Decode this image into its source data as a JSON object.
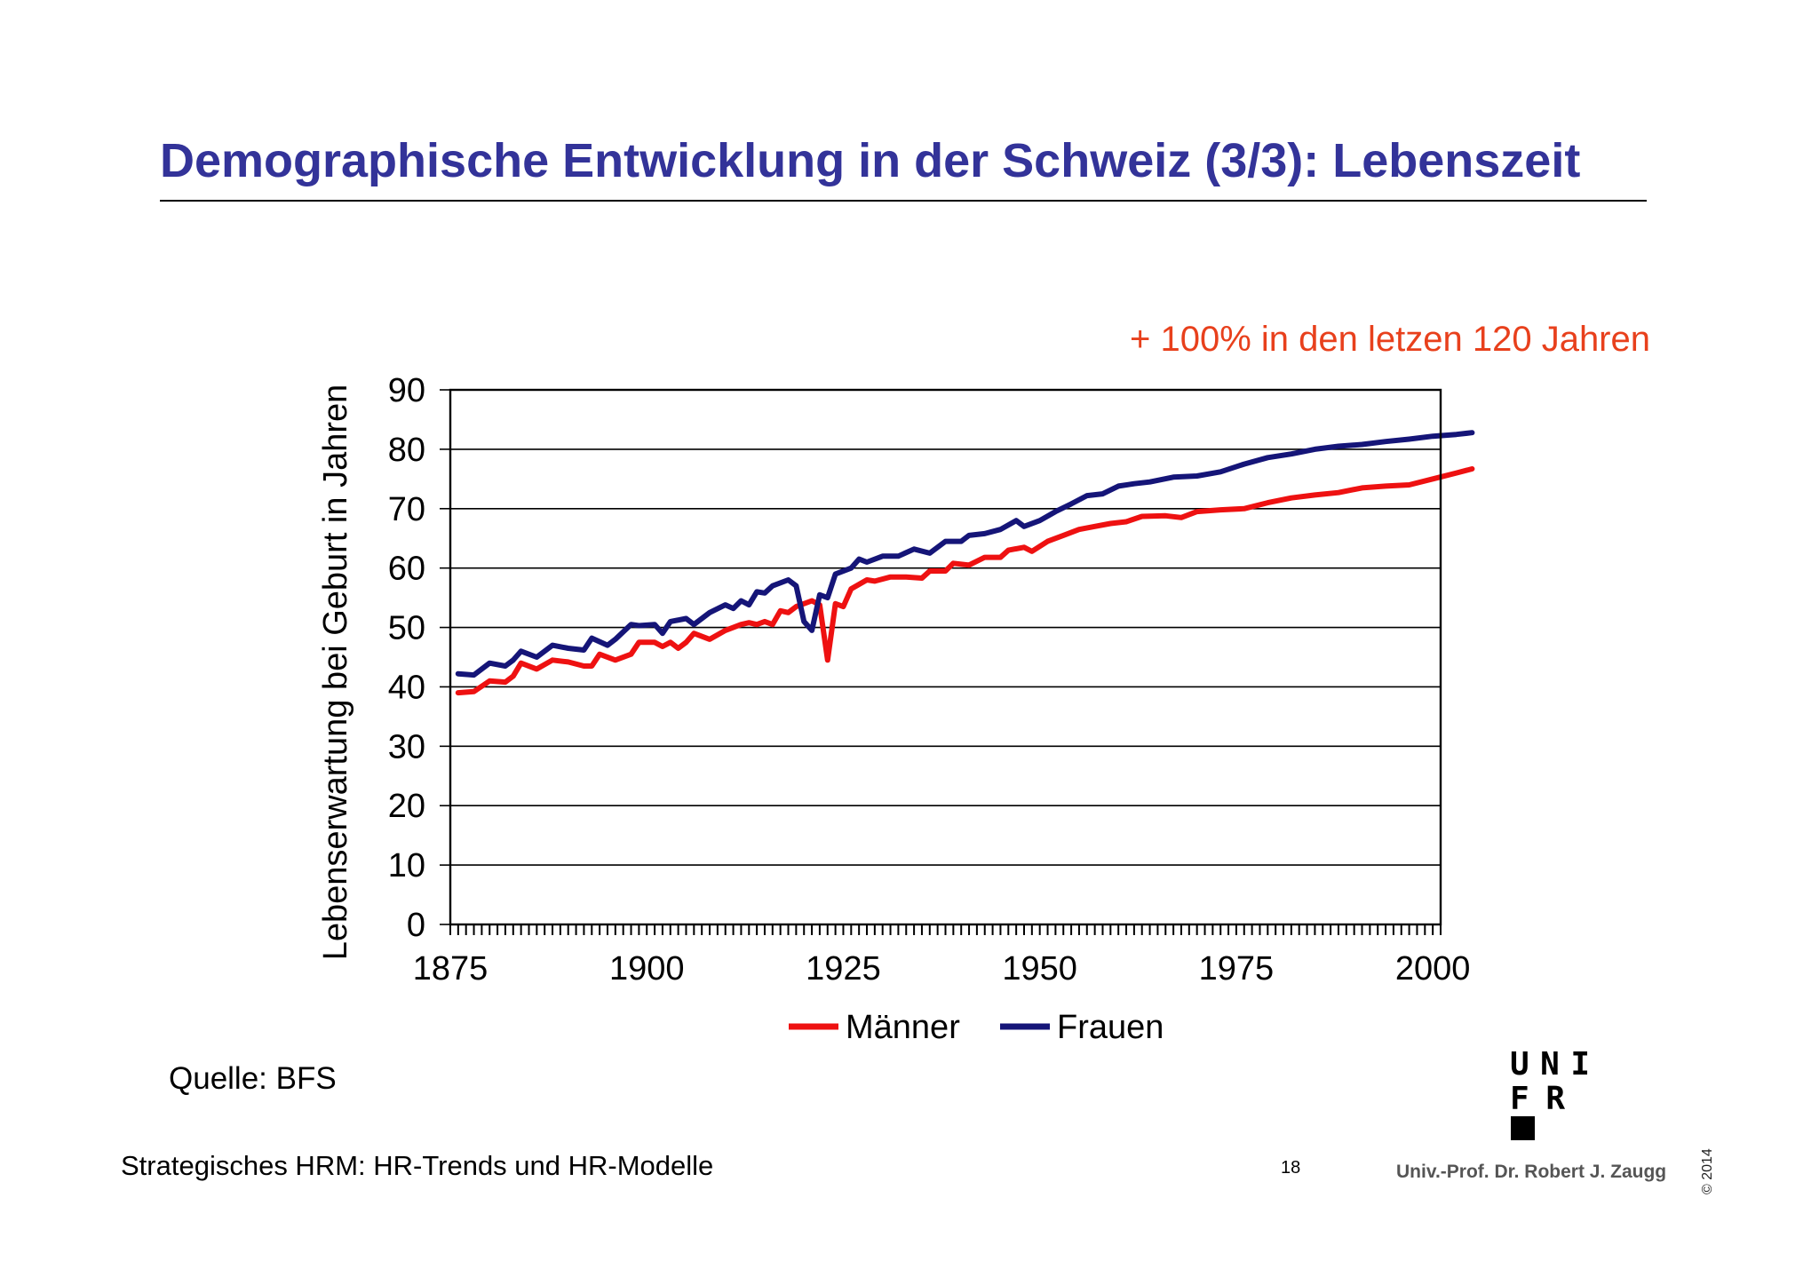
{
  "slide": {
    "title": "Demographische Entwicklung in der Schweiz (3/3): Lebenszeit",
    "annotation": "+ 100% in den letzen 120 Jahren",
    "source": "Quelle: BFS",
    "footer": "Strategisches HRM: HR-Trends und HR-Modelle",
    "page_number": "18",
    "author": "Univ.-Prof. Dr. Robert J. Zaugg",
    "copyright": "© 2014",
    "logo_text": [
      "UNI",
      "FR"
    ]
  },
  "chart_data": {
    "type": "line",
    "title": "",
    "xlabel": "",
    "ylabel": "Lebenserwartung bei Geburt in Jahren",
    "xlim": [
      1875,
      2001
    ],
    "ylim": [
      0,
      90
    ],
    "xticks": [
      1875,
      1900,
      1925,
      1950,
      1975,
      2000
    ],
    "yticks": [
      0,
      10,
      20,
      30,
      40,
      50,
      60,
      70,
      80,
      90
    ],
    "grid": true,
    "legend_position": "bottom",
    "series": [
      {
        "name": "Männer",
        "color": "#ee1111",
        "points": [
          [
            1876,
            39
          ],
          [
            1878,
            39.2
          ],
          [
            1880,
            41
          ],
          [
            1882,
            40.8
          ],
          [
            1883,
            41.8
          ],
          [
            1884,
            44
          ],
          [
            1886,
            43
          ],
          [
            1888,
            44.5
          ],
          [
            1890,
            44.2
          ],
          [
            1892,
            43.5
          ],
          [
            1893,
            43.5
          ],
          [
            1894,
            45.5
          ],
          [
            1896,
            44.5
          ],
          [
            1898,
            45.5
          ],
          [
            1899,
            47.5
          ],
          [
            1901,
            47.5
          ],
          [
            1902,
            46.8
          ],
          [
            1903,
            47.5
          ],
          [
            1904,
            46.5
          ],
          [
            1905,
            47.5
          ],
          [
            1906,
            49
          ],
          [
            1908,
            48
          ],
          [
            1910,
            49.5
          ],
          [
            1912,
            50.5
          ],
          [
            1913,
            50.8
          ],
          [
            1914,
            50.5
          ],
          [
            1915,
            51
          ],
          [
            1916,
            50.5
          ],
          [
            1917,
            52.8
          ],
          [
            1918,
            52.5
          ],
          [
            1919,
            53.5
          ],
          [
            1921,
            54.5
          ],
          [
            1922,
            53.8
          ],
          [
            1923,
            44.5
          ],
          [
            1924,
            54
          ],
          [
            1925,
            53.5
          ],
          [
            1926,
            56.5
          ],
          [
            1928,
            58
          ],
          [
            1929,
            57.8
          ],
          [
            1931,
            58.5
          ],
          [
            1933,
            58.5
          ],
          [
            1935,
            58.3
          ],
          [
            1936,
            59.5
          ],
          [
            1938,
            59.5
          ],
          [
            1939,
            60.8
          ],
          [
            1941,
            60.5
          ],
          [
            1943,
            61.8
          ],
          [
            1945,
            61.8
          ],
          [
            1946,
            63
          ],
          [
            1948,
            63.5
          ],
          [
            1949,
            62.8
          ],
          [
            1951,
            64.5
          ],
          [
            1953,
            65.5
          ],
          [
            1955,
            66.5
          ],
          [
            1957,
            67
          ],
          [
            1959,
            67.5
          ],
          [
            1961,
            67.8
          ],
          [
            1963,
            68.7
          ],
          [
            1966,
            68.8
          ],
          [
            1968,
            68.5
          ],
          [
            1970,
            69.5
          ],
          [
            1973,
            69.8
          ],
          [
            1976,
            70
          ],
          [
            1979,
            71
          ],
          [
            1982,
            71.8
          ],
          [
            1985,
            72.3
          ],
          [
            1988,
            72.7
          ],
          [
            1991,
            73.5
          ],
          [
            1994,
            73.8
          ],
          [
            1997,
            74
          ],
          [
            2000,
            75
          ],
          [
            2003,
            76
          ],
          [
            2005,
            76.7
          ]
        ]
      },
      {
        "name": "Frauen",
        "color": "#151578",
        "points": [
          [
            1876,
            42.2
          ],
          [
            1878,
            42
          ],
          [
            1880,
            44
          ],
          [
            1882,
            43.5
          ],
          [
            1883,
            44.5
          ],
          [
            1884,
            46
          ],
          [
            1886,
            45
          ],
          [
            1888,
            47
          ],
          [
            1890,
            46.5
          ],
          [
            1892,
            46.2
          ],
          [
            1893,
            48.2
          ],
          [
            1895,
            47
          ],
          [
            1896,
            48
          ],
          [
            1898,
            50.5
          ],
          [
            1899,
            50.3
          ],
          [
            1901,
            50.5
          ],
          [
            1902,
            49
          ],
          [
            1903,
            51
          ],
          [
            1905,
            51.5
          ],
          [
            1906,
            50.5
          ],
          [
            1908,
            52.5
          ],
          [
            1910,
            53.8
          ],
          [
            1911,
            53.2
          ],
          [
            1912,
            54.5
          ],
          [
            1913,
            53.8
          ],
          [
            1914,
            56
          ],
          [
            1915,
            55.8
          ],
          [
            1916,
            57
          ],
          [
            1918,
            58
          ],
          [
            1919,
            57
          ],
          [
            1920,
            51
          ],
          [
            1921,
            49.5
          ],
          [
            1922,
            55.5
          ],
          [
            1923,
            55
          ],
          [
            1924,
            59
          ],
          [
            1926,
            60
          ],
          [
            1927,
            61.5
          ],
          [
            1928,
            61
          ],
          [
            1930,
            62
          ],
          [
            1932,
            62
          ],
          [
            1934,
            63.2
          ],
          [
            1936,
            62.5
          ],
          [
            1938,
            64.5
          ],
          [
            1940,
            64.5
          ],
          [
            1941,
            65.5
          ],
          [
            1943,
            65.8
          ],
          [
            1945,
            66.5
          ],
          [
            1947,
            68
          ],
          [
            1948,
            67
          ],
          [
            1950,
            68
          ],
          [
            1952,
            69.5
          ],
          [
            1954,
            70.8
          ],
          [
            1956,
            72.2
          ],
          [
            1958,
            72.5
          ],
          [
            1960,
            73.8
          ],
          [
            1962,
            74.2
          ],
          [
            1964,
            74.5
          ],
          [
            1967,
            75.3
          ],
          [
            1970,
            75.5
          ],
          [
            1973,
            76.2
          ],
          [
            1976,
            77.5
          ],
          [
            1979,
            78.6
          ],
          [
            1982,
            79.2
          ],
          [
            1985,
            80
          ],
          [
            1988,
            80.5
          ],
          [
            1991,
            80.8
          ],
          [
            1994,
            81.3
          ],
          [
            1997,
            81.7
          ],
          [
            2000,
            82.2
          ],
          [
            2003,
            82.5
          ],
          [
            2005,
            82.8
          ]
        ]
      }
    ]
  },
  "colors": {
    "title": "#333399",
    "annotation": "#e8401c",
    "male_line": "#ee1111",
    "female_line": "#151578"
  }
}
